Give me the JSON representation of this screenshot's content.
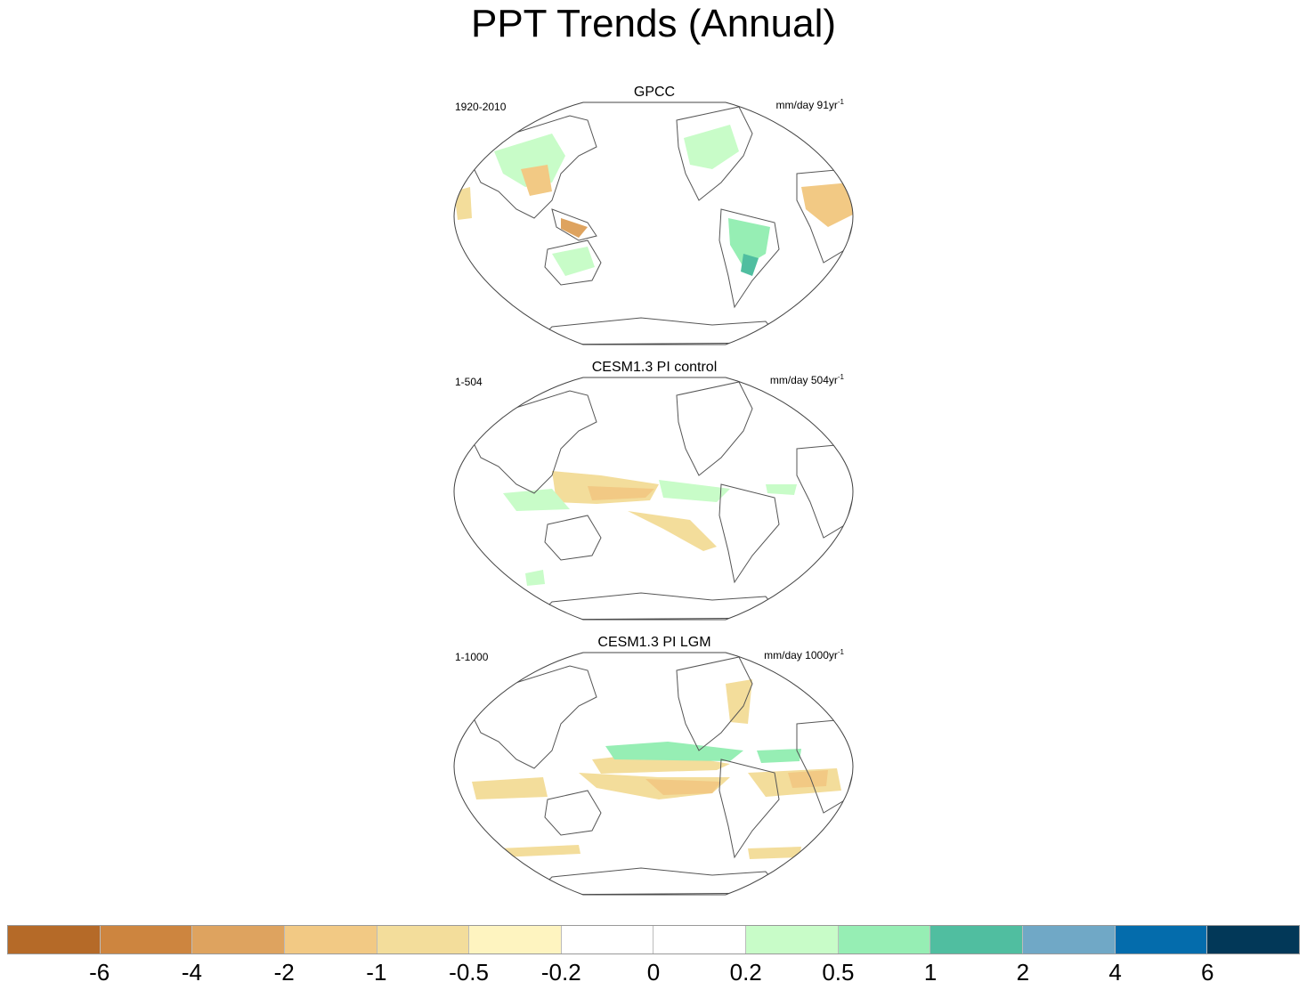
{
  "title": "PPT Trends (Annual)",
  "panels": [
    {
      "title": "GPCC",
      "period": "1920-2010",
      "units_base": "mm/day 91yr",
      "units_exp": "-1"
    },
    {
      "title": "CESM1.3 PI control",
      "period": "1-504",
      "units_base": "mm/day 504yr",
      "units_exp": "-1"
    },
    {
      "title": "CESM1.3 PI LGM",
      "period": "1-1000",
      "units_base": "mm/day 1000yr",
      "units_exp": "-1"
    }
  ],
  "colorbar": {
    "colors": [
      "#b56a28",
      "#cd853f",
      "#dea35f",
      "#f2c984",
      "#f3dd9b",
      "#fef4c0",
      "#ffffff",
      "#ffffff",
      "#c8fcc8",
      "#96eeb4",
      "#50bea0",
      "#70a8c6",
      "#046cac",
      "#023858"
    ],
    "labels": [
      "-6",
      "-4",
      "-2",
      "-1",
      "-0.5",
      "-0.2",
      "0",
      "0.2",
      "0.5",
      "1",
      "2",
      "4",
      "6"
    ]
  }
}
